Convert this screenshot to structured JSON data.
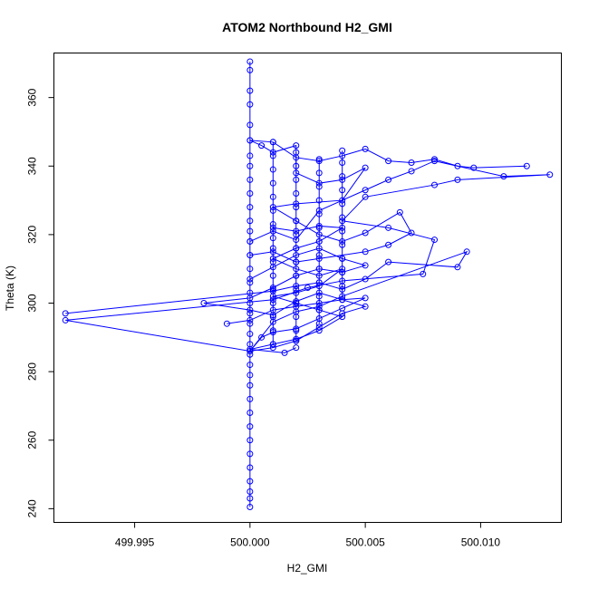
{
  "chart_data": {
    "type": "line",
    "title": "ATOM2 Northbound H2_GMI",
    "xlabel": "H2_GMI",
    "ylabel": "Theta (K)",
    "xlim": [
      499.9915,
      500.0135
    ],
    "ylim": [
      236,
      373
    ],
    "xticks": [
      499.995,
      500.0,
      500.005,
      500.01
    ],
    "xtick_labels": [
      "499.995",
      "500.000",
      "500.005",
      "500.010"
    ],
    "yticks": [
      240,
      260,
      280,
      300,
      320,
      340,
      360
    ],
    "ytick_labels": [
      "240",
      "260",
      "280",
      "300",
      "320",
      "340",
      "360"
    ],
    "grid": false,
    "legend": "none",
    "marker": "open-circle",
    "color": "#0000ff",
    "series": [
      {
        "points": [
          [
            500.0,
            370.5
          ],
          [
            500.0,
            368.0
          ],
          [
            500.0,
            362.0
          ],
          [
            500.0,
            358.0
          ],
          [
            500.0,
            352.0
          ],
          [
            500.0,
            347.5
          ],
          [
            500.0,
            343.0
          ],
          [
            500.0,
            340.0
          ],
          [
            500.0,
            336.0
          ],
          [
            500.0,
            332.0
          ],
          [
            500.0,
            328.0
          ],
          [
            500.0,
            324.0
          ],
          [
            500.0,
            321.0
          ],
          [
            500.0,
            318.0
          ],
          [
            500.0,
            314.0
          ],
          [
            500.0,
            310.0
          ],
          [
            500.0,
            306.0
          ],
          [
            500.0,
            303.0
          ],
          [
            500.0,
            300.0
          ],
          [
            500.0,
            297.0
          ],
          [
            500.0,
            294.0
          ],
          [
            500.0,
            291.0
          ],
          [
            500.0,
            288.0
          ],
          [
            500.0,
            285.0
          ],
          [
            500.0,
            282.0
          ],
          [
            500.0,
            279.0
          ],
          [
            500.0,
            276.0
          ],
          [
            500.0,
            272.0
          ],
          [
            500.0,
            268.0
          ],
          [
            500.0,
            264.0
          ],
          [
            500.0,
            260.0
          ],
          [
            500.0,
            256.0
          ],
          [
            500.0,
            252.0
          ],
          [
            500.0,
            248.0
          ],
          [
            500.0,
            245.0
          ],
          [
            500.0,
            243.0
          ],
          [
            500.0,
            240.5
          ]
        ]
      },
      {
        "points": [
          [
            499.992,
            297.0
          ],
          [
            500.001,
            303.5
          ],
          [
            500.002,
            305.0
          ],
          [
            500.003,
            306.0
          ],
          [
            500.004,
            304.0
          ],
          [
            500.005,
            307.0
          ],
          [
            500.006,
            312.0
          ],
          [
            500.009,
            310.5
          ],
          [
            500.0094,
            315.0
          ],
          [
            500.004,
            302.0
          ],
          [
            500.003,
            299.0
          ],
          [
            500.002,
            297.5
          ],
          [
            500.001,
            294.5
          ],
          [
            500.0,
            286.0
          ],
          [
            499.992,
            295.0
          ],
          [
            500.001,
            301.0
          ],
          [
            500.0025,
            304.5
          ],
          [
            500.004,
            306.5
          ],
          [
            500.0075,
            308.5
          ],
          [
            500.008,
            318.5
          ],
          [
            500.006,
            322.0
          ],
          [
            500.004,
            324.0
          ],
          [
            500.005,
            331.0
          ],
          [
            500.008,
            334.5
          ],
          [
            500.009,
            336.0
          ],
          [
            500.013,
            337.5
          ],
          [
            500.011,
            337.0
          ],
          [
            500.008,
            341.5
          ],
          [
            500.007,
            338.5
          ],
          [
            500.006,
            336.0
          ],
          [
            500.005,
            333.0
          ],
          [
            500.003,
            327.0
          ],
          [
            500.002,
            318.5
          ],
          [
            500.001,
            321.0
          ],
          [
            500.0,
            318.0
          ]
        ]
      },
      {
        "points": [
          [
            500.012,
            340.0
          ],
          [
            500.0097,
            339.5
          ],
          [
            500.009,
            340.0
          ],
          [
            500.008,
            342.0
          ],
          [
            500.007,
            341.0
          ],
          [
            500.006,
            341.5
          ],
          [
            500.005,
            345.0
          ],
          [
            500.004,
            343.0
          ],
          [
            500.003,
            341.5
          ],
          [
            500.002,
            342.5
          ],
          [
            500.001,
            347.0
          ],
          [
            500.0,
            347.5
          ],
          [
            500.0005,
            346.0
          ],
          [
            500.001,
            344.0
          ],
          [
            500.002,
            346.0
          ],
          [
            500.002,
            338.0
          ],
          [
            500.003,
            335.0
          ],
          [
            500.004,
            336.0
          ],
          [
            500.005,
            339.5
          ],
          [
            500.004,
            330.0
          ],
          [
            500.002,
            329.0
          ],
          [
            500.001,
            328.0
          ],
          [
            500.002,
            324.0
          ],
          [
            500.003,
            320.0
          ],
          [
            500.004,
            318.0
          ],
          [
            500.005,
            320.5
          ],
          [
            500.0065,
            326.5
          ],
          [
            500.007,
            320.5
          ],
          [
            500.006,
            317.0
          ],
          [
            500.005,
            315.0
          ],
          [
            500.003,
            313.0
          ],
          [
            500.002,
            312.0
          ],
          [
            500.001,
            315.0
          ],
          [
            500.0,
            314.0
          ]
        ]
      },
      {
        "points": [
          [
            499.999,
            294.0
          ],
          [
            500.0,
            295.0
          ],
          [
            500.001,
            298.0
          ],
          [
            500.002,
            299.0
          ],
          [
            500.003,
            300.0
          ],
          [
            500.004,
            301.0
          ],
          [
            500.005,
            301.5
          ],
          [
            500.004,
            298.5
          ],
          [
            500.003,
            295.5
          ],
          [
            500.002,
            292.5
          ],
          [
            500.001,
            291.5
          ],
          [
            500.0005,
            290.0
          ],
          [
            500.0,
            286.0
          ],
          [
            500.001,
            287.0
          ],
          [
            500.002,
            289.0
          ],
          [
            500.003,
            293.0
          ],
          [
            500.004,
            297.0
          ],
          [
            500.005,
            299.0
          ],
          [
            500.003,
            303.0
          ],
          [
            500.002,
            300.5
          ],
          [
            500.001,
            296.5
          ],
          [
            500.0,
            298.0
          ],
          [
            499.998,
            300.0
          ],
          [
            500.0,
            301.5
          ],
          [
            500.001,
            304.5
          ],
          [
            500.002,
            308.0
          ],
          [
            500.003,
            310.0
          ],
          [
            500.004,
            309.0
          ],
          [
            500.005,
            311.0
          ],
          [
            500.004,
            313.0
          ],
          [
            500.003,
            316.0
          ],
          [
            500.002,
            314.0
          ],
          [
            500.001,
            310.5
          ],
          [
            500.0,
            307.0
          ]
        ]
      },
      {
        "points": [
          [
            500.001,
            322.0
          ],
          [
            500.002,
            321.0
          ],
          [
            500.003,
            322.5
          ],
          [
            500.004,
            322.0
          ],
          [
            500.003,
            318.0
          ],
          [
            500.002,
            316.0
          ],
          [
            500.001,
            313.0
          ],
          [
            500.002,
            310.0
          ],
          [
            500.003,
            308.0
          ],
          [
            500.004,
            310.0
          ],
          [
            500.003,
            305.0
          ],
          [
            500.002,
            303.0
          ],
          [
            500.001,
            302.0
          ],
          [
            500.002,
            300.0
          ],
          [
            500.003,
            298.0
          ],
          [
            500.004,
            296.0
          ],
          [
            500.003,
            292.0
          ],
          [
            500.002,
            289.5
          ],
          [
            500.001,
            288.0
          ],
          [
            500.0,
            286.5
          ],
          [
            500.0015,
            285.5
          ],
          [
            500.002,
            287.0
          ]
        ]
      },
      {
        "points": [
          [
            500.001,
            347.0
          ],
          [
            500.001,
            343.0
          ],
          [
            500.001,
            339.0
          ],
          [
            500.001,
            335.0
          ],
          [
            500.001,
            331.0
          ],
          [
            500.001,
            327.0
          ],
          [
            500.001,
            323.0
          ],
          [
            500.001,
            319.0
          ],
          [
            500.001,
            316.0
          ],
          [
            500.001,
            312.0
          ],
          [
            500.001,
            308.0
          ],
          [
            500.001,
            304.0
          ],
          [
            500.001,
            300.0
          ],
          [
            500.001,
            296.0
          ],
          [
            500.001,
            292.0
          ],
          [
            500.001,
            288.0
          ]
        ]
      },
      {
        "points": [
          [
            500.002,
            344.0
          ],
          [
            500.002,
            340.0
          ],
          [
            500.002,
            336.0
          ],
          [
            500.002,
            332.0
          ],
          [
            500.002,
            328.0
          ],
          [
            500.002,
            324.0
          ],
          [
            500.002,
            320.0
          ],
          [
            500.002,
            316.0
          ],
          [
            500.002,
            312.0
          ],
          [
            500.002,
            308.0
          ],
          [
            500.002,
            304.0
          ],
          [
            500.002,
            300.0
          ],
          [
            500.002,
            296.0
          ],
          [
            500.002,
            292.0
          ],
          [
            500.002,
            289.0
          ]
        ]
      },
      {
        "points": [
          [
            500.003,
            342.0
          ],
          [
            500.003,
            338.0
          ],
          [
            500.003,
            334.0
          ],
          [
            500.003,
            330.0
          ],
          [
            500.003,
            326.0
          ],
          [
            500.003,
            322.0
          ],
          [
            500.003,
            318.0
          ],
          [
            500.003,
            314.0
          ],
          [
            500.003,
            310.0
          ],
          [
            500.003,
            306.0
          ],
          [
            500.003,
            302.0
          ],
          [
            500.003,
            298.0
          ],
          [
            500.003,
            294.0
          ]
        ]
      },
      {
        "points": [
          [
            500.004,
            344.5
          ],
          [
            500.004,
            341.0
          ],
          [
            500.004,
            337.0
          ],
          [
            500.004,
            333.0
          ],
          [
            500.004,
            329.0
          ],
          [
            500.004,
            325.0
          ],
          [
            500.004,
            321.0
          ],
          [
            500.004,
            317.0
          ],
          [
            500.004,
            313.0
          ],
          [
            500.004,
            309.0
          ],
          [
            500.004,
            305.0
          ],
          [
            500.004,
            301.0
          ]
        ]
      }
    ]
  }
}
